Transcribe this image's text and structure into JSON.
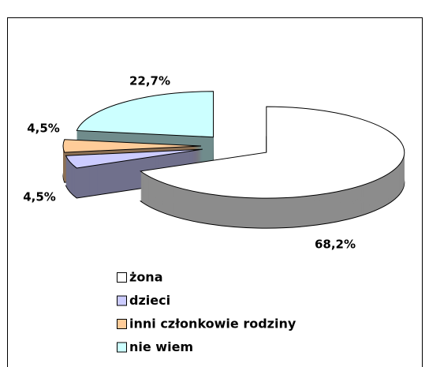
{
  "chart_data": {
    "type": "pie3d",
    "categories": [
      "żona",
      "dzieci",
      "inni członkowie rodziny",
      "nie wiem"
    ],
    "values": [
      68.2,
      4.5,
      4.5,
      22.7
    ],
    "value_labels": [
      "68,2%",
      "4,5%",
      "4,5%",
      "22,7%"
    ],
    "colors": [
      "#ffffff",
      "#ccccff",
      "#ffcc99",
      "#ccffff"
    ],
    "legend": "bottom"
  }
}
